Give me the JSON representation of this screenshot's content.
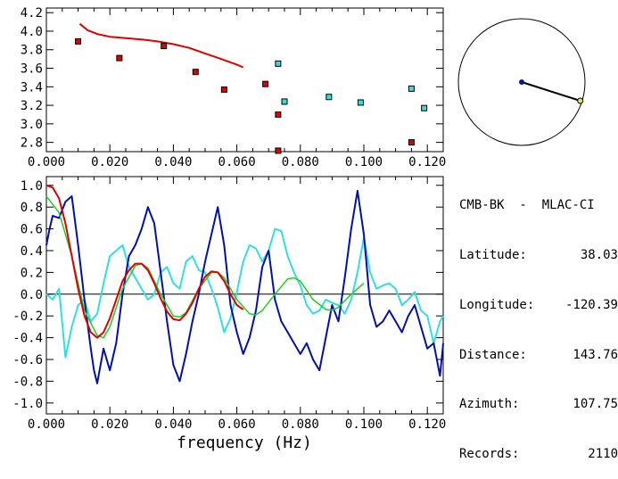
{
  "info": {
    "station_pair": "CMB-BK  -  MLAC-CI",
    "rows": [
      {
        "label": "Latitude:",
        "value": "38.03"
      },
      {
        "label": "Longitude:",
        "value": "-120.39"
      },
      {
        "label": "Distance:",
        "value": "143.76"
      },
      {
        "label": "Azimuth:",
        "value": "107.75"
      },
      {
        "label": "Records:",
        "value": "2110"
      }
    ]
  },
  "colors": {
    "red": "#e00000",
    "cyan": "#30e0e0",
    "blue": "#0010b0",
    "green": "#20d020",
    "map_dot": "#0a1a8a",
    "map_end": "#f0e060"
  },
  "azimuth_map": {
    "azimuth_deg": 107.75,
    "shape": "circle"
  },
  "chart_data": [
    {
      "type": "scatter",
      "title": "",
      "xlabel": "",
      "ylabel": "",
      "xlim": [
        0.0,
        0.125
      ],
      "ylim": [
        2.7,
        4.25
      ],
      "x_ticks": [
        "0.000",
        "0.020",
        "0.040",
        "0.060",
        "0.080",
        "0.100",
        "0.120"
      ],
      "y_ticks": [
        "2.8",
        "3.0",
        "3.2",
        "3.4",
        "3.6",
        "3.8",
        "4.0",
        "4.2"
      ],
      "series": [
        {
          "kind": "line",
          "color": "red",
          "x": [
            0.0105,
            0.013,
            0.016,
            0.02,
            0.025,
            0.03,
            0.035,
            0.04,
            0.045,
            0.05,
            0.055,
            0.06,
            0.062
          ],
          "y": [
            4.08,
            4.01,
            3.97,
            3.94,
            3.925,
            3.91,
            3.89,
            3.86,
            3.82,
            3.76,
            3.7,
            3.64,
            3.61
          ]
        },
        {
          "kind": "markers",
          "color": "red",
          "x": [
            0.01,
            0.023,
            0.037,
            0.047,
            0.056,
            0.069,
            0.073,
            0.073,
            0.115
          ],
          "y": [
            3.89,
            3.71,
            3.84,
            3.56,
            3.37,
            3.43,
            3.1,
            2.71,
            2.8
          ]
        },
        {
          "kind": "markers",
          "color": "cyan",
          "x": [
            0.073,
            0.075,
            0.089,
            0.099,
            0.115,
            0.119
          ],
          "y": [
            3.65,
            3.24,
            3.29,
            3.23,
            3.38,
            3.17
          ]
        }
      ]
    },
    {
      "type": "line",
      "title": "",
      "xlabel": "frequency (Hz)",
      "ylabel": "",
      "xlim": [
        0.0,
        0.125
      ],
      "ylim": [
        -1.1,
        1.08
      ],
      "x_ticks": [
        "0.000",
        "0.020",
        "0.040",
        "0.060",
        "0.080",
        "0.100",
        "0.120"
      ],
      "y_ticks": [
        "-1.0",
        "-0.8",
        "-0.6",
        "-0.4",
        "-0.2",
        "0.0",
        "0.2",
        "0.4",
        "0.6",
        "0.8",
        "1.0"
      ],
      "zero_line": true,
      "series": [
        {
          "color": "cyan",
          "x": [
            0.0,
            0.002,
            0.004,
            0.006,
            0.008,
            0.01,
            0.012,
            0.014,
            0.016,
            0.018,
            0.02,
            0.022,
            0.024,
            0.026,
            0.028,
            0.03,
            0.032,
            0.034,
            0.036,
            0.038,
            0.04,
            0.042,
            0.044,
            0.046,
            0.048,
            0.05,
            0.052,
            0.054,
            0.056,
            0.058,
            0.06,
            0.062,
            0.064,
            0.066,
            0.068,
            0.07,
            0.072,
            0.074,
            0.076,
            0.078,
            0.08,
            0.082,
            0.084,
            0.086,
            0.088,
            0.09,
            0.092,
            0.094,
            0.096,
            0.098,
            0.1,
            0.102,
            0.104,
            0.106,
            0.108,
            0.11,
            0.112,
            0.114,
            0.116,
            0.118,
            0.12,
            0.122,
            0.124,
            0.125
          ],
          "y": [
            0.0,
            -0.05,
            0.05,
            -0.58,
            -0.3,
            -0.1,
            -0.05,
            -0.25,
            -0.18,
            0.1,
            0.35,
            0.4,
            0.45,
            0.25,
            0.15,
            0.05,
            -0.05,
            0.0,
            0.2,
            0.25,
            0.1,
            0.05,
            0.3,
            0.35,
            0.22,
            0.2,
            0.05,
            -0.12,
            -0.35,
            -0.22,
            0.02,
            0.3,
            0.45,
            0.42,
            0.3,
            0.4,
            0.6,
            0.58,
            0.35,
            0.2,
            0.08,
            -0.1,
            -0.18,
            -0.15,
            -0.05,
            -0.08,
            -0.1,
            -0.18,
            -0.05,
            0.2,
            0.52,
            0.2,
            0.05,
            0.08,
            0.1,
            0.05,
            -0.1,
            -0.05,
            0.02,
            -0.15,
            -0.2,
            -0.45,
            -0.25,
            -0.2
          ]
        },
        {
          "color": "blue",
          "x": [
            0.0,
            0.001,
            0.002,
            0.004,
            0.006,
            0.008,
            0.01,
            0.012,
            0.014,
            0.015,
            0.016,
            0.018,
            0.02,
            0.022,
            0.024,
            0.026,
            0.028,
            0.03,
            0.032,
            0.034,
            0.036,
            0.038,
            0.04,
            0.042,
            0.044,
            0.046,
            0.048,
            0.05,
            0.052,
            0.054,
            0.056,
            0.058,
            0.06,
            0.062,
            0.064,
            0.066,
            0.068,
            0.07,
            0.072,
            0.074,
            0.076,
            0.078,
            0.08,
            0.082,
            0.084,
            0.086,
            0.088,
            0.09,
            0.092,
            0.094,
            0.096,
            0.098,
            0.1,
            0.102,
            0.104,
            0.106,
            0.108,
            0.11,
            0.112,
            0.114,
            0.116,
            0.118,
            0.12,
            0.122,
            0.124,
            0.125
          ],
          "y": [
            0.45,
            0.6,
            0.72,
            0.7,
            0.85,
            0.9,
            0.45,
            -0.05,
            -0.5,
            -0.7,
            -0.82,
            -0.5,
            -0.7,
            -0.45,
            0.0,
            0.35,
            0.45,
            0.6,
            0.8,
            0.65,
            0.2,
            -0.25,
            -0.65,
            -0.8,
            -0.55,
            -0.25,
            0.0,
            0.3,
            0.55,
            0.8,
            0.45,
            -0.1,
            -0.35,
            -0.55,
            -0.4,
            -0.15,
            0.25,
            0.4,
            -0.05,
            -0.25,
            -0.35,
            -0.45,
            -0.55,
            -0.45,
            -0.6,
            -0.7,
            -0.4,
            -0.1,
            -0.25,
            0.15,
            0.6,
            0.95,
            0.55,
            -0.1,
            -0.3,
            -0.25,
            -0.15,
            -0.25,
            -0.35,
            -0.2,
            -0.1,
            -0.3,
            -0.5,
            -0.45,
            -0.75,
            -0.45
          ]
        },
        {
          "color": "green",
          "x": [
            0.0,
            0.004,
            0.008,
            0.012,
            0.016,
            0.018,
            0.02,
            0.024,
            0.028,
            0.03,
            0.032,
            0.036,
            0.04,
            0.042,
            0.044,
            0.048,
            0.052,
            0.054,
            0.056,
            0.06,
            0.064,
            0.066,
            0.068,
            0.072,
            0.076,
            0.078,
            0.08,
            0.084,
            0.088,
            0.09,
            0.092,
            0.096,
            0.1
          ],
          "y": [
            0.9,
            0.75,
            0.35,
            -0.15,
            -0.38,
            -0.4,
            -0.3,
            0.05,
            0.26,
            0.28,
            0.24,
            0.0,
            -0.2,
            -0.21,
            -0.17,
            0.05,
            0.2,
            0.2,
            0.15,
            -0.05,
            -0.18,
            -0.19,
            -0.15,
            0.0,
            0.14,
            0.15,
            0.12,
            -0.05,
            -0.14,
            -0.15,
            -0.12,
            0.0,
            0.1
          ]
        },
        {
          "color": "red",
          "x": [
            0.0,
            0.002,
            0.004,
            0.006,
            0.008,
            0.01,
            0.012,
            0.014,
            0.016,
            0.018,
            0.02,
            0.022,
            0.024,
            0.026,
            0.028,
            0.03,
            0.032,
            0.034,
            0.036,
            0.038,
            0.04,
            0.042,
            0.044,
            0.046,
            0.048,
            0.05,
            0.052,
            0.054,
            0.056,
            0.058,
            0.06,
            0.062
          ],
          "y": [
            1.0,
            0.98,
            0.88,
            0.65,
            0.35,
            0.05,
            -0.2,
            -0.35,
            -0.4,
            -0.35,
            -0.22,
            -0.05,
            0.12,
            0.22,
            0.28,
            0.28,
            0.22,
            0.1,
            -0.04,
            -0.16,
            -0.23,
            -0.24,
            -0.18,
            -0.08,
            0.05,
            0.16,
            0.21,
            0.2,
            0.12,
            0.0,
            -0.1,
            -0.14
          ]
        }
      ]
    }
  ]
}
